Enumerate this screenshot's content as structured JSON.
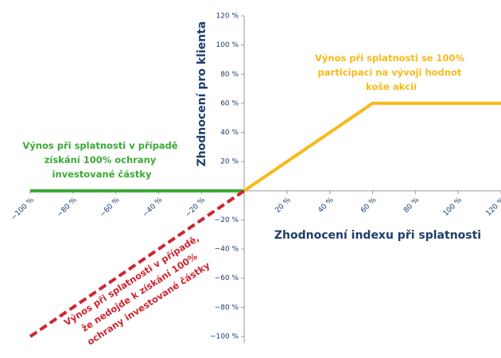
{
  "chart_data": {
    "type": "line",
    "x_label": "Zhodnocení indexu při splatnosti",
    "y_label": "Zhodnocení pro klienta",
    "xlim": [
      -100,
      120
    ],
    "ylim": [
      -100,
      120
    ],
    "xticks": [
      {
        "value": -100,
        "label": "−100 %"
      },
      {
        "value": -80,
        "label": "−80 %"
      },
      {
        "value": -60,
        "label": "−60 %"
      },
      {
        "value": -40,
        "label": "−40 %"
      },
      {
        "value": -20,
        "label": "−20 %"
      },
      {
        "value": 20,
        "label": "20 %"
      },
      {
        "value": 40,
        "label": "40 %"
      },
      {
        "value": 60,
        "label": "60 %"
      },
      {
        "value": 80,
        "label": "80 %"
      },
      {
        "value": 100,
        "label": "100 %"
      },
      {
        "value": 120,
        "label": "120 %"
      }
    ],
    "yticks": [
      {
        "value": -100,
        "label": "−100 %"
      },
      {
        "value": -80,
        "label": "−80 %"
      },
      {
        "value": -60,
        "label": "−60 %"
      },
      {
        "value": -40,
        "label": "−40 %"
      },
      {
        "value": -20,
        "label": "−20 %"
      },
      {
        "value": 20,
        "label": "20 %"
      },
      {
        "value": 40,
        "label": "40 %"
      },
      {
        "value": 60,
        "label": "60 %"
      },
      {
        "value": 80,
        "label": "80 %"
      },
      {
        "value": 100,
        "label": "100 %"
      },
      {
        "value": 120,
        "label": "120 %"
      }
    ],
    "series": [
      {
        "color": "#3aaa35",
        "dashed": false,
        "x": [
          -100,
          0
        ],
        "values": [
          0,
          0
        ]
      },
      {
        "color": "#f9b918",
        "dashed": false,
        "x": [
          0,
          60,
          120
        ],
        "values": [
          0,
          60,
          60
        ]
      },
      {
        "color": "#cf2530",
        "dashed": true,
        "x": [
          -100,
          0
        ],
        "values": [
          -100,
          0
        ]
      }
    ],
    "annotations": [
      {
        "color": "#f9b918",
        "lines": [
          "Výnos při splatnosti se 100%",
          "participací na vývoji hodnot",
          "koše akcií"
        ]
      },
      {
        "color": "#3aaa35",
        "lines": [
          "Výnos při splatnosti v případě",
          "získání 100% ochrany",
          "investované částky"
        ]
      },
      {
        "color": "#cf2530",
        "lines": [
          "Výnos při splatnosti v případě,",
          "že nedojde k získání 100%",
          "ochrany investované částky"
        ]
      }
    ]
  }
}
